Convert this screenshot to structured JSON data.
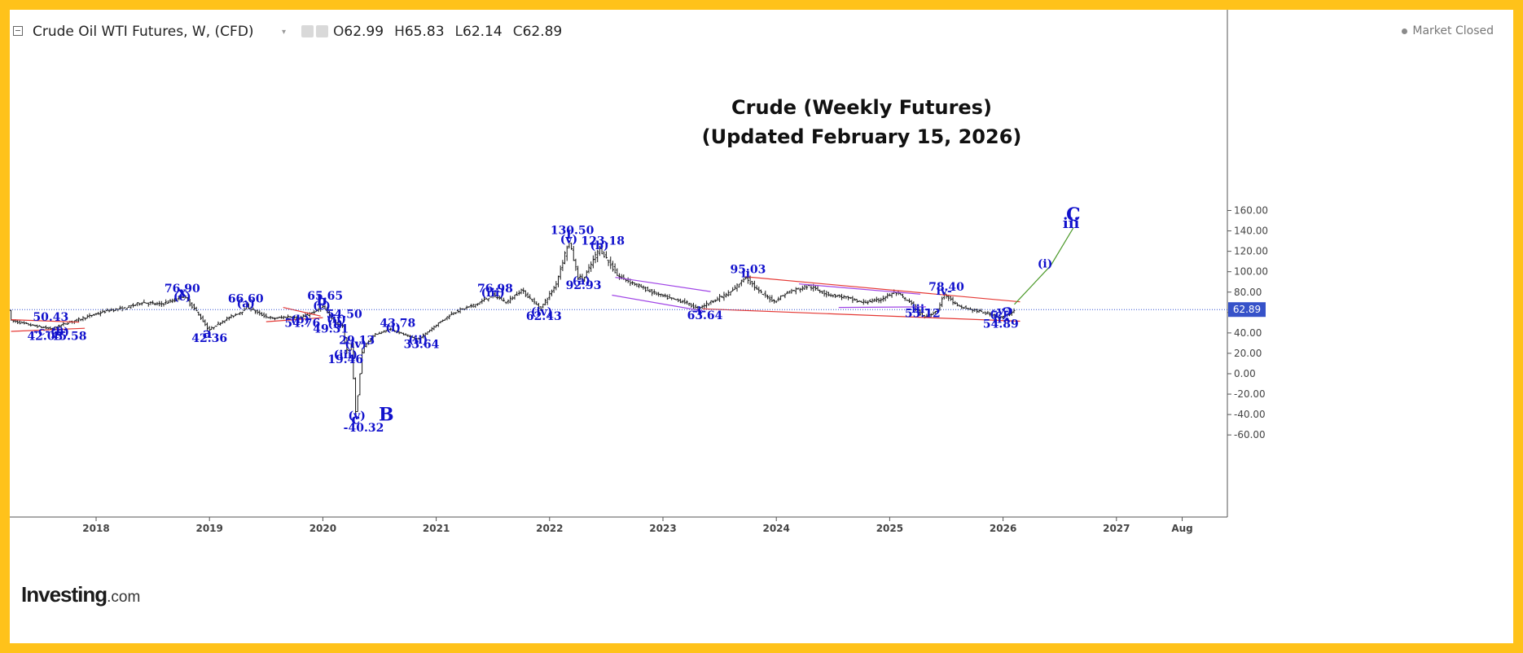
{
  "header": {
    "title": "Crude Oil WTI Futures, W, (CFD)",
    "open_label": "O",
    "open": "62.99",
    "high_label": "H",
    "high": "65.83",
    "low_label": "L",
    "low": "62.14",
    "close_label": "C",
    "close": "62.89",
    "market_status": "Market Closed"
  },
  "logo": {
    "main": "Investing",
    "suffix": ".com"
  },
  "colors": {
    "frame": "#FFC21A",
    "candles": "#1a1a1a",
    "wave_labels": "#1010CC",
    "trendlines": "#E53935",
    "channel": "#A045E6",
    "projection": "#4C9A2A",
    "price_line": "#2F4BD0",
    "price_tag": "#3652C9"
  },
  "chart_data": {
    "type": "candlestick",
    "title": "Crude (Weekly Futures)",
    "subtitle": "(Updated February 15, 2026)",
    "xlabel": "",
    "ylabel": "",
    "ylim": [
      -70,
      175
    ],
    "xlim": [
      2017.25,
      2027.95
    ],
    "grid": false,
    "current_price": 62.89,
    "current_price_label": "62.89",
    "y_ticks": [
      160,
      140,
      120,
      100,
      80,
      60,
      40,
      20,
      0,
      -20,
      -40,
      -60
    ],
    "y_tick_labels": [
      "160.00",
      "140.00",
      "120.00",
      "100.00",
      "80.00",
      "60.00",
      "40.00",
      "20.00",
      "0.00",
      "-20.00",
      "-40.00",
      "-60.00"
    ],
    "x_ticks": [
      {
        "label": "2018",
        "x": 2018.0
      },
      {
        "label": "2019",
        "x": 2019.0
      },
      {
        "label": "2020",
        "x": 2020.0
      },
      {
        "label": "2021",
        "x": 2021.0
      },
      {
        "label": "2022",
        "x": 2022.0
      },
      {
        "label": "2023",
        "x": 2023.0
      },
      {
        "label": "2024",
        "x": 2024.0
      },
      {
        "label": "2025",
        "x": 2025.0
      },
      {
        "label": "2026",
        "x": 2026.0
      },
      {
        "label": "2027",
        "x": 2027.0
      },
      {
        "label": "Aug",
        "x": 2027.58
      }
    ],
    "price_path": [
      [
        2017.25,
        52
      ],
      [
        2017.45,
        47
      ],
      [
        2017.6,
        44
      ],
      [
        2017.75,
        50
      ],
      [
        2017.9,
        55
      ],
      [
        2018.1,
        62
      ],
      [
        2018.25,
        64
      ],
      [
        2018.4,
        70
      ],
      [
        2018.55,
        68
      ],
      [
        2018.7,
        72
      ],
      [
        2018.76,
        76.9
      ],
      [
        2018.88,
        62
      ],
      [
        2018.98,
        45
      ],
      [
        2018.99,
        42.36
      ],
      [
        2019.12,
        52
      ],
      [
        2019.3,
        62
      ],
      [
        2019.32,
        66.6
      ],
      [
        2019.45,
        58
      ],
      [
        2019.55,
        54
      ],
      [
        2019.7,
        56
      ],
      [
        2019.8,
        54.76
      ],
      [
        2019.95,
        62
      ],
      [
        2020.0,
        65.65
      ],
      [
        2020.05,
        58
      ],
      [
        2020.08,
        54.5
      ],
      [
        2020.12,
        49.31
      ],
      [
        2020.18,
        46
      ],
      [
        2020.2,
        29
      ],
      [
        2020.22,
        19.46
      ],
      [
        2020.25,
        29.13
      ],
      [
        2020.29,
        -40.32
      ],
      [
        2020.35,
        25
      ],
      [
        2020.45,
        38
      ],
      [
        2020.6,
        43.78
      ],
      [
        2020.72,
        38
      ],
      [
        2020.84,
        33.64
      ],
      [
        2021.0,
        48
      ],
      [
        2021.15,
        60
      ],
      [
        2021.35,
        68
      ],
      [
        2021.5,
        76.98
      ],
      [
        2021.62,
        70
      ],
      [
        2021.75,
        82
      ],
      [
        2021.9,
        66
      ],
      [
        2021.91,
        62.43
      ],
      [
        2022.05,
        86
      ],
      [
        2022.17,
        130.5
      ],
      [
        2022.25,
        95
      ],
      [
        2022.3,
        92.93
      ],
      [
        2022.44,
        123.18
      ],
      [
        2022.6,
        96
      ],
      [
        2022.75,
        88
      ],
      [
        2022.9,
        80
      ],
      [
        2023.05,
        74
      ],
      [
        2023.2,
        70
      ],
      [
        2023.3,
        63.64
      ],
      [
        2023.45,
        72
      ],
      [
        2023.6,
        80
      ],
      [
        2023.73,
        95.03
      ],
      [
        2023.85,
        80
      ],
      [
        2023.98,
        71
      ],
      [
        2024.1,
        80
      ],
      [
        2024.28,
        86
      ],
      [
        2024.45,
        78
      ],
      [
        2024.6,
        75
      ],
      [
        2024.75,
        70
      ],
      [
        2024.9,
        72
      ],
      [
        2025.05,
        80
      ],
      [
        2025.2,
        68
      ],
      [
        2025.3,
        55.12
      ],
      [
        2025.42,
        62
      ],
      [
        2025.48,
        78.4
      ],
      [
        2025.6,
        66
      ],
      [
        2025.75,
        62
      ],
      [
        2025.9,
        58
      ],
      [
        2025.97,
        54.89
      ],
      [
        2026.05,
        58
      ],
      [
        2026.1,
        62.89
      ]
    ],
    "annotations": [
      {
        "text": "76.90",
        "x": 2018.76,
        "y": 80
      },
      {
        "text": "x",
        "x": 2018.76,
        "y": 75.5,
        "size": "l"
      },
      {
        "text": "(c)",
        "x": 2018.76,
        "y": 72
      },
      {
        "text": "66.60",
        "x": 2019.32,
        "y": 70
      },
      {
        "text": "(a)",
        "x": 2019.32,
        "y": 65
      },
      {
        "text": "65.65",
        "x": 2020.02,
        "y": 72.5
      },
      {
        "text": "b",
        "x": 2019.99,
        "y": 67,
        "size": "l"
      },
      {
        "text": "(c)",
        "x": 2019.99,
        "y": 63
      },
      {
        "text": "54.50",
        "x": 2020.19,
        "y": 54.5
      },
      {
        "text": "(ii)",
        "x": 2020.12,
        "y": 50
      },
      {
        "text": "54.76",
        "x": 2019.82,
        "y": 46
      },
      {
        "text": "(b)",
        "x": 2019.8,
        "y": 49.5
      },
      {
        "text": "(i)",
        "x": 2020.11,
        "y": 45
      },
      {
        "text": "49.31",
        "x": 2020.07,
        "y": 40.5
      },
      {
        "text": "50.43",
        "x": 2017.6,
        "y": 52
      },
      {
        "text": "-c-",
        "x": 2017.52,
        "y": 38
      },
      {
        "text": "-e-",
        "x": 2017.68,
        "y": 40
      },
      {
        "text": "(b)",
        "x": 2017.68,
        "y": 37.5
      },
      {
        "text": "42.03",
        "x": 2017.55,
        "y": 33
      },
      {
        "text": "45.58",
        "x": 2017.76,
        "y": 33
      },
      {
        "text": "a",
        "x": 2018.98,
        "y": 35,
        "size": "l"
      },
      {
        "text": "42.36",
        "x": 2019.0,
        "y": 31
      },
      {
        "text": "29.13",
        "x": 2020.3,
        "y": 29
      },
      {
        "text": "(iv)",
        "x": 2020.29,
        "y": 25.5
      },
      {
        "text": "(iii)",
        "x": 2020.2,
        "y": 15
      },
      {
        "text": "19.46",
        "x": 2020.2,
        "y": 10.5
      },
      {
        "text": "43.78",
        "x": 2020.66,
        "y": 46
      },
      {
        "text": "(i)",
        "x": 2020.62,
        "y": 41.5
      },
      {
        "text": "(ii)",
        "x": 2020.84,
        "y": 29.5
      },
      {
        "text": "33.64",
        "x": 2020.87,
        "y": 25
      },
      {
        "text": "(v)",
        "x": 2020.3,
        "y": -44.5
      },
      {
        "text": "c",
        "x": 2020.29,
        "y": -49,
        "size": "l"
      },
      {
        "text": "-40.32",
        "x": 2020.36,
        "y": -56.5
      },
      {
        "text": "B",
        "x": 2020.56,
        "y": -46,
        "size": "xl"
      },
      {
        "text": "76.98",
        "x": 2021.52,
        "y": 80
      },
      {
        "text": "(iii)",
        "x": 2021.5,
        "y": 76
      },
      {
        "text": "(iv)",
        "x": 2021.93,
        "y": 57
      },
      {
        "text": "62.43",
        "x": 2021.95,
        "y": 52.5
      },
      {
        "text": "130.50",
        "x": 2022.2,
        "y": 137
      },
      {
        "text": "I",
        "x": 2022.17,
        "y": 132.5
      },
      {
        "text": "(v)",
        "x": 2022.17,
        "y": 128
      },
      {
        "text": "123.18",
        "x": 2022.47,
        "y": 126.5
      },
      {
        "text": "(b)",
        "x": 2022.44,
        "y": 122
      },
      {
        "text": "(a)",
        "x": 2022.28,
        "y": 87.5
      },
      {
        "text": "92.93",
        "x": 2022.3,
        "y": 83
      },
      {
        "text": "-i-",
        "x": 2023.32,
        "y": 58
      },
      {
        "text": "63.64",
        "x": 2023.37,
        "y": 53.5
      },
      {
        "text": "95.03",
        "x": 2023.75,
        "y": 98.5
      },
      {
        "text": "ii",
        "x": 2023.73,
        "y": 94.5
      },
      {
        "text": "78.40",
        "x": 2025.5,
        "y": 81.5
      },
      {
        "text": "iv-",
        "x": 2025.48,
        "y": 77.5
      },
      {
        "text": "-iii-",
        "x": 2025.25,
        "y": 60
      },
      {
        "text": "55.12",
        "x": 2025.29,
        "y": 55.5
      },
      {
        "text": "-v-",
        "x": 2025.98,
        "y": 58
      },
      {
        "text": "(c)",
        "x": 2025.96,
        "y": 54.5
      },
      {
        "text": "ii",
        "x": 2025.95,
        "y": 50
      },
      {
        "text": "?",
        "x": 2026.04,
        "y": 52,
        "size": "xl"
      },
      {
        "text": "54.89",
        "x": 2025.98,
        "y": 45
      },
      {
        "text": "(i)",
        "x": 2026.37,
        "y": 104
      },
      {
        "text": "C",
        "x": 2026.62,
        "y": 150,
        "size": "xl"
      },
      {
        "text": "iii",
        "x": 2026.6,
        "y": 143,
        "size": "l"
      }
    ],
    "trendlines": [
      {
        "color": "red",
        "points": [
          [
            2017.25,
            41.5
          ],
          [
            2017.9,
            44.5
          ]
        ]
      },
      {
        "color": "red",
        "points": [
          [
            2017.25,
            53
          ],
          [
            2017.85,
            50.5
          ]
        ]
      },
      {
        "color": "red",
        "points": [
          [
            2019.5,
            51
          ],
          [
            2020.0,
            55
          ]
        ]
      },
      {
        "color": "red",
        "points": [
          [
            2019.65,
            65
          ],
          [
            2019.98,
            56.5
          ]
        ]
      },
      {
        "color": "red",
        "points": [
          [
            2023.35,
            63.64
          ],
          [
            2026.15,
            51.5
          ]
        ]
      },
      {
        "color": "red",
        "points": [
          [
            2023.73,
            95.03
          ],
          [
            2026.15,
            70.5
          ]
        ]
      },
      {
        "color": "purple",
        "points": [
          [
            2022.58,
            94.5
          ],
          [
            2023.42,
            80.5
          ]
        ]
      },
      {
        "color": "purple",
        "points": [
          [
            2022.55,
            77
          ],
          [
            2023.35,
            61.5
          ]
        ]
      },
      {
        "color": "purple",
        "points": [
          [
            2024.2,
            88
          ],
          [
            2025.27,
            78
          ]
        ]
      },
      {
        "color": "purple",
        "points": [
          [
            2024.55,
            65
          ],
          [
            2025.32,
            65.5
          ]
        ]
      },
      {
        "color": "green",
        "points": [
          [
            2026.1,
            68
          ],
          [
            2026.42,
            106
          ],
          [
            2026.62,
            143
          ]
        ]
      }
    ]
  }
}
